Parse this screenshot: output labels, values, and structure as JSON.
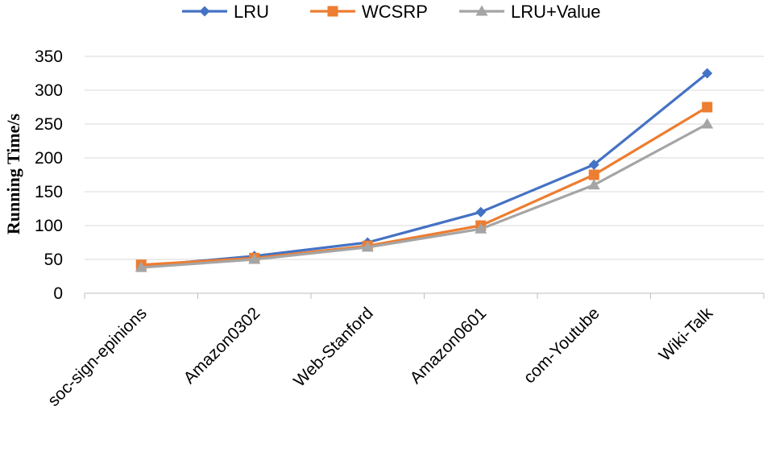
{
  "chart_data": {
    "type": "line",
    "categories": [
      "soc-sign-epinions",
      "Amazon0302",
      "Web-Stanford",
      "Amazon0601",
      "com-Youtube",
      "Wiki-Talk"
    ],
    "series": [
      {
        "name": "LRU",
        "values": [
          40,
          55,
          75,
          120,
          190,
          325
        ],
        "color": "#4472C4",
        "marker": "diamond"
      },
      {
        "name": "WCSRP",
        "values": [
          42,
          52,
          70,
          100,
          175,
          275
        ],
        "color": "#ED7D31",
        "marker": "square"
      },
      {
        "name": "LRU+Value",
        "values": [
          38,
          50,
          68,
          95,
          160,
          250
        ],
        "color": "#A5A5A5",
        "marker": "triangle"
      }
    ],
    "ylabel": "Running Time/s",
    "xlabel": "",
    "ylim": [
      0,
      350
    ],
    "yticks": [
      0,
      50,
      100,
      150,
      200,
      250,
      300,
      350
    ],
    "grid": true,
    "legend_position": "top"
  }
}
